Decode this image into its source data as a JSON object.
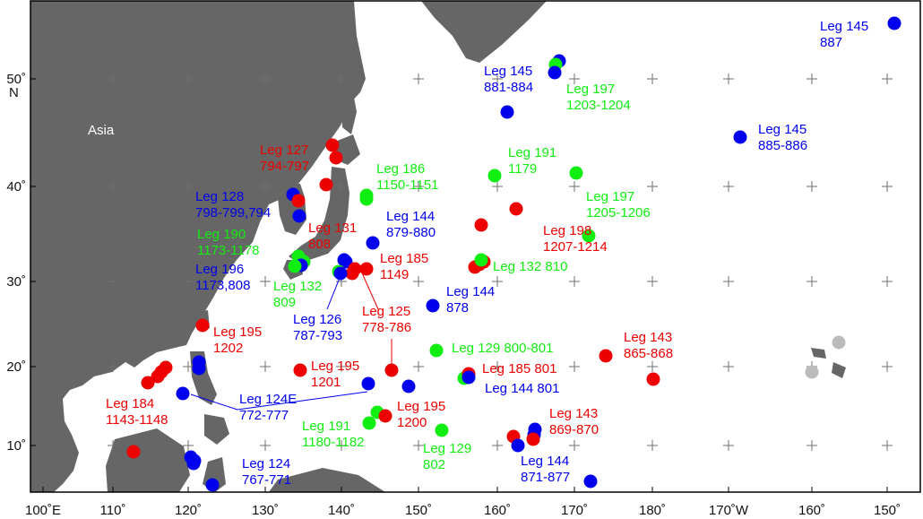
{
  "map": {
    "region_label": "Asia",
    "frame_color": "#000000",
    "land_color": "#666666",
    "ocean_color": "#ffffff",
    "series_colors": {
      "blue": "#0000ee",
      "red": "#ee0000",
      "green": "#11ee11",
      "gray": "#bbbbbb"
    },
    "x_ticks": [
      "100˚E",
      "110˚",
      "120˚",
      "130˚",
      "140˚",
      "150˚",
      "160˚",
      "170˚",
      "180˚",
      "170˚W",
      "160˚",
      "150˚"
    ],
    "y_ticks": [
      "10˚",
      "20˚",
      "30˚",
      "40˚",
      "50˚"
    ],
    "y_unit": "N"
  },
  "labels": [
    {
      "color": "blue",
      "lines": [
        "Leg 145",
        "887"
      ]
    },
    {
      "color": "blue",
      "lines": [
        "Leg 145",
        "881-884"
      ]
    },
    {
      "color": "green",
      "lines": [
        "Leg 197",
        "1203-1204"
      ]
    },
    {
      "color": "blue",
      "lines": [
        "Leg 145",
        "885-886"
      ]
    },
    {
      "color": "red",
      "lines": [
        "Leg 127",
        "794-797"
      ]
    },
    {
      "color": "green",
      "lines": [
        "Leg 191",
        "1179"
      ]
    },
    {
      "color": "green",
      "lines": [
        "Leg 186",
        "1150-1151"
      ]
    },
    {
      "color": "blue",
      "lines": [
        "Leg 128",
        "798-799,794"
      ]
    },
    {
      "color": "green",
      "lines": [
        "Leg 197",
        "1205-1206"
      ]
    },
    {
      "color": "blue",
      "lines": [
        "Leg 144",
        "879-880"
      ]
    },
    {
      "color": "red",
      "lines": [
        "Leg 131",
        "808"
      ]
    },
    {
      "color": "green",
      "lines": [
        "Leg 190",
        "1173-1178"
      ]
    },
    {
      "color": "red",
      "lines": [
        "Leg 198",
        "1207-1214"
      ]
    },
    {
      "color": "red",
      "lines": [
        "Leg 185",
        "1149"
      ]
    },
    {
      "color": "green",
      "lines": [
        "Leg 132 810"
      ]
    },
    {
      "color": "blue",
      "lines": [
        "Leg 196",
        "1173,808"
      ]
    },
    {
      "color": "green",
      "lines": [
        "Leg 132",
        "809"
      ]
    },
    {
      "color": "blue",
      "lines": [
        "Leg 144",
        "878"
      ]
    },
    {
      "color": "red",
      "lines": [
        "Leg 125",
        "778-786"
      ]
    },
    {
      "color": "blue",
      "lines": [
        "Leg 126",
        "787-793"
      ]
    },
    {
      "color": "red",
      "lines": [
        "Leg 195",
        "1202"
      ]
    },
    {
      "color": "green",
      "lines": [
        "Leg 129 800-801"
      ]
    },
    {
      "color": "red",
      "lines": [
        "Leg 143",
        "865-868"
      ]
    },
    {
      "color": "red",
      "lines": [
        "Leg 195",
        "1201"
      ]
    },
    {
      "color": "red",
      "lines": [
        "Leg 185 801"
      ]
    },
    {
      "color": "blue",
      "lines": [
        "Leg 144 801"
      ]
    },
    {
      "color": "red",
      "lines": [
        "Leg 184",
        "1143-1148"
      ]
    },
    {
      "color": "blue",
      "lines": [
        "Leg 124E",
        "772-777"
      ]
    },
    {
      "color": "red",
      "lines": [
        "Leg 195",
        "1200"
      ]
    },
    {
      "color": "green",
      "lines": [
        "Leg 191",
        "1180-1182"
      ]
    },
    {
      "color": "red",
      "lines": [
        "Leg 143",
        "869-870"
      ]
    },
    {
      "color": "green",
      "lines": [
        "Leg 129",
        "802"
      ]
    },
    {
      "color": "blue",
      "lines": [
        "Leg 124",
        "767-771"
      ]
    },
    {
      "color": "blue",
      "lines": [
        "Leg 144",
        "871-877"
      ]
    }
  ]
}
